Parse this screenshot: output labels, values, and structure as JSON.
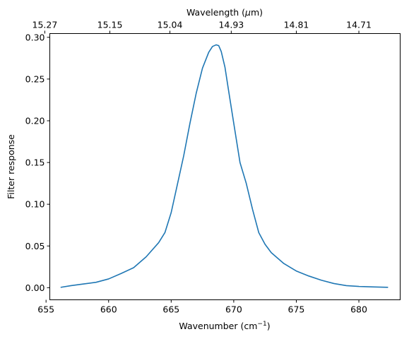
{
  "chart_data": {
    "type": "line",
    "title": "",
    "xlabel_main": "Wavenumber (cm",
    "xlabel_sup": "−1",
    "xlabel_close": ")",
    "ylabel": "Filter response",
    "top_xlabel_prefix": "Wavelength (",
    "top_xlabel_mu": "μ",
    "top_xlabel_unit": "m)",
    "xlim": [
      655.3,
      683.3
    ],
    "ylim": [
      -0.0145,
      0.3045
    ],
    "xticks": [
      655,
      660,
      665,
      670,
      675,
      680
    ],
    "xtick_labels": [
      "655",
      "660",
      "665",
      "670",
      "675",
      "680"
    ],
    "yticks": [
      0.0,
      0.05,
      0.1,
      0.15,
      0.2,
      0.25,
      0.3
    ],
    "ytick_labels": [
      "0.00",
      "0.05",
      "0.10",
      "0.15",
      "0.20",
      "0.25",
      "0.30"
    ],
    "top_ticks": [
      {
        "wavenumber": 654.9,
        "label": "15.27"
      },
      {
        "wavenumber": 660.1,
        "label": "15.15"
      },
      {
        "wavenumber": 664.9,
        "label": "15.04"
      },
      {
        "wavenumber": 669.8,
        "label": "14.93"
      },
      {
        "wavenumber": 675.0,
        "label": "14.81"
      },
      {
        "wavenumber": 680.0,
        "label": "14.71"
      }
    ],
    "grid": false,
    "series": [
      {
        "color": "#1f77b4",
        "x": [
          656.2,
          657.0,
          658.0,
          659.0,
          660.0,
          661.0,
          662.0,
          663.0,
          664.0,
          664.5,
          665.0,
          665.5,
          666.0,
          666.5,
          667.0,
          667.5,
          668.0,
          668.3,
          668.6,
          668.8,
          669.0,
          669.3,
          669.6,
          670.0,
          670.5,
          671.0,
          671.5,
          672.0,
          672.5,
          673.0,
          674.0,
          675.0,
          676.0,
          677.0,
          678.0,
          679.0,
          680.0,
          681.0,
          682.3
        ],
        "y": [
          0.0005,
          0.0025,
          0.0045,
          0.0065,
          0.0105,
          0.017,
          0.024,
          0.037,
          0.054,
          0.066,
          0.09,
          0.124,
          0.158,
          0.197,
          0.233,
          0.263,
          0.282,
          0.289,
          0.291,
          0.29,
          0.283,
          0.264,
          0.235,
          0.197,
          0.15,
          0.125,
          0.094,
          0.066,
          0.052,
          0.042,
          0.029,
          0.02,
          0.014,
          0.009,
          0.005,
          0.0025,
          0.0015,
          0.001,
          0.0005
        ]
      }
    ]
  }
}
